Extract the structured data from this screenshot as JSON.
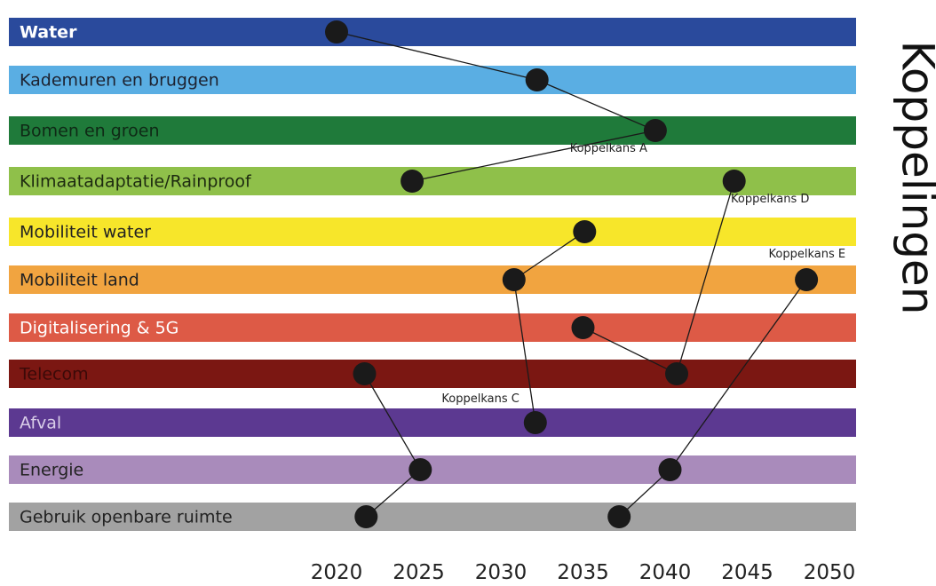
{
  "chart_data": {
    "type": "timeline",
    "title": "Koppelingen",
    "x_ticks": [
      2020,
      2025,
      2030,
      2035,
      2040,
      2045,
      2050
    ],
    "xlim": [
      2020,
      2050
    ],
    "categories": [
      {
        "label": "Water",
        "color": "#2a4a9c",
        "text_color": "#ffffff",
        "bold": true
      },
      {
        "label": "Kademuren en bruggen",
        "color": "#5aaee3",
        "text_color": "#1d2230",
        "bold": false
      },
      {
        "label": "Bomen en groen",
        "color": "#1f7a3a",
        "text_color": "#0f2a16",
        "bold": false
      },
      {
        "label": "Klimaatadaptatie/Rainproof",
        "color": "#8fc04a",
        "text_color": "#1d2a10",
        "bold": false
      },
      {
        "label": "Mobiliteit water",
        "color": "#f7e62a",
        "text_color": "#222222",
        "bold": false
      },
      {
        "label": "Mobiliteit land",
        "color": "#f1a440",
        "text_color": "#222222",
        "bold": false
      },
      {
        "label": "Digitalisering & 5G",
        "color": "#dd5a46",
        "text_color": "#ffffff",
        "bold": false
      },
      {
        "label": "Telecom",
        "color": "#7b1712",
        "text_color": "#3b0a08",
        "bold": false
      },
      {
        "label": "Afval",
        "color": "#5c3991",
        "text_color": "#d8cde8",
        "bold": false
      },
      {
        "label": "Energie",
        "color": "#a98bbb",
        "text_color": "#222222",
        "bold": false
      },
      {
        "label": "Gebruik openbare ruimte",
        "color": "#a2a2a2",
        "text_color": "#222222",
        "bold": false
      }
    ],
    "points": [
      {
        "id": "w",
        "category": "Water",
        "year": 2020.0
      },
      {
        "id": "k",
        "category": "Kademuren en bruggen",
        "year": 2032.2
      },
      {
        "id": "b",
        "category": "Bomen en groen",
        "year": 2039.4
      },
      {
        "id": "r1",
        "category": "Klimaatadaptatie/Rainproof",
        "year": 2024.6
      },
      {
        "id": "r2",
        "category": "Klimaatadaptatie/Rainproof",
        "year": 2044.2
      },
      {
        "id": "mw",
        "category": "Mobiliteit water",
        "year": 2035.1
      },
      {
        "id": "ml1",
        "category": "Mobiliteit land",
        "year": 2030.8
      },
      {
        "id": "ml2",
        "category": "Mobiliteit land",
        "year": 2048.6
      },
      {
        "id": "d",
        "category": "Digitalisering & 5G",
        "year": 2035.0
      },
      {
        "id": "t1",
        "category": "Telecom",
        "year": 2021.7
      },
      {
        "id": "t2",
        "category": "Telecom",
        "year": 2040.7
      },
      {
        "id": "a",
        "category": "Afval",
        "year": 2032.1
      },
      {
        "id": "e1",
        "category": "Energie",
        "year": 2025.1
      },
      {
        "id": "e2",
        "category": "Energie",
        "year": 2040.3
      },
      {
        "id": "g1",
        "category": "Gebruik openbare ruimte",
        "year": 2021.8
      },
      {
        "id": "g2",
        "category": "Gebruik openbare ruimte",
        "year": 2037.2
      }
    ],
    "connections": [
      {
        "name": "Koppelkans A",
        "path": [
          "w",
          "k",
          "b",
          "r1"
        ]
      },
      {
        "name": "Koppelkans C",
        "path": [
          "mw",
          "ml1",
          "a"
        ]
      },
      {
        "name": "Koppelkans D",
        "path": [
          "r2",
          "t2",
          "d"
        ]
      },
      {
        "name": "",
        "path": [
          "t1",
          "e1",
          "g1"
        ]
      },
      {
        "name": "Koppelkans E",
        "path": [
          "ml2",
          "e2",
          "g2"
        ]
      }
    ],
    "annotations": [
      {
        "text": "Koppelkans A",
        "category": "Bomen en groen",
        "year": 2034.2
      },
      {
        "text": "Koppelkans D",
        "category": "Klimaatadaptatie/Rainproof",
        "year": 2044.0
      },
      {
        "text": "Koppelkans E",
        "category": "Mobiliteit land",
        "year": 2046.3
      },
      {
        "text": "Koppelkans C",
        "category": "Afval",
        "year": 2026.4
      }
    ],
    "grid": false,
    "legend": "none"
  }
}
